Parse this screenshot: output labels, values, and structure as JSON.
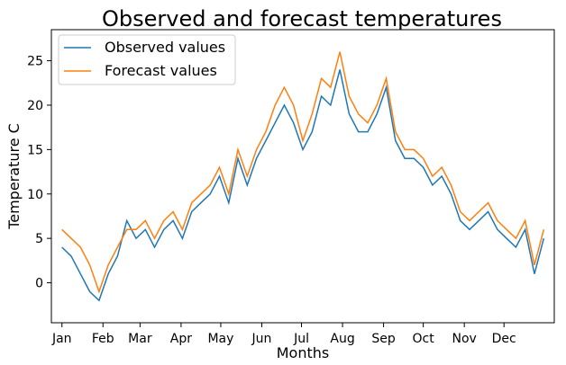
{
  "chart_data": {
    "type": "line",
    "title": "Observed and forecast temperatures",
    "xlabel": "Months",
    "ylabel": "Temperature C",
    "x_unit": "day_of_year",
    "xlim": [
      -8,
      372
    ],
    "ylim": [
      -4.5,
      28.5
    ],
    "x_ticks": [
      {
        "label": "Jan",
        "day": 0
      },
      {
        "label": "Feb",
        "day": 31
      },
      {
        "label": "Mar",
        "day": 59
      },
      {
        "label": "Apr",
        "day": 90
      },
      {
        "label": "May",
        "day": 120
      },
      {
        "label": "Jun",
        "day": 151
      },
      {
        "label": "Jul",
        "day": 181
      },
      {
        "label": "Aug",
        "day": 212
      },
      {
        "label": "Sep",
        "day": 243
      },
      {
        "label": "Oct",
        "day": 273
      },
      {
        "label": "Nov",
        "day": 304
      },
      {
        "label": "Dec",
        "day": 334
      }
    ],
    "y_ticks": [
      0,
      5,
      10,
      15,
      20,
      25
    ],
    "grid": false,
    "legend_position": "top-left",
    "colors": {
      "observed": "#1f77b4",
      "forecast": "#ff7f0e"
    },
    "series": [
      {
        "name": "Observed values",
        "x": [
          0,
          7,
          14,
          21,
          28,
          35,
          42,
          49,
          56,
          63,
          70,
          77,
          84,
          91,
          98,
          105,
          112,
          119,
          126,
          133,
          140,
          147,
          154,
          161,
          168,
          175,
          182,
          189,
          196,
          203,
          210,
          217,
          224,
          231,
          238,
          245,
          252,
          259,
          266,
          273,
          280,
          287,
          294,
          301,
          308,
          315,
          322,
          329,
          336,
          343,
          350,
          357,
          364
        ],
        "y": [
          4,
          3,
          1,
          -1,
          -2,
          1,
          3,
          7,
          5,
          6,
          4,
          6,
          7,
          5,
          8,
          9,
          10,
          12,
          9,
          14,
          11,
          14,
          16,
          18,
          20,
          18,
          15,
          17,
          21,
          20,
          24,
          19,
          17,
          17,
          19,
          22,
          16,
          14,
          14,
          13,
          11,
          12,
          10,
          7,
          6,
          7,
          8,
          6,
          5,
          4,
          6,
          1,
          5
        ]
      },
      {
        "name": "Forecast values",
        "x": [
          0,
          7,
          14,
          21,
          28,
          35,
          42,
          49,
          56,
          63,
          70,
          77,
          84,
          91,
          98,
          105,
          112,
          119,
          126,
          133,
          140,
          147,
          154,
          161,
          168,
          175,
          182,
          189,
          196,
          203,
          210,
          217,
          224,
          231,
          238,
          245,
          252,
          259,
          266,
          273,
          280,
          287,
          294,
          301,
          308,
          315,
          322,
          329,
          336,
          343,
          350,
          357,
          364
        ],
        "y": [
          6,
          5,
          4,
          2,
          -1,
          2,
          4,
          6,
          6,
          7,
          5,
          7,
          8,
          6,
          9,
          10,
          11,
          13,
          10,
          15,
          12,
          15,
          17,
          20,
          22,
          20,
          16,
          19,
          23,
          22,
          26,
          21,
          19,
          18,
          20,
          23,
          17,
          15,
          15,
          14,
          12,
          13,
          11,
          8,
          7,
          8,
          9,
          7,
          6,
          5,
          7,
          2,
          6
        ]
      }
    ]
  }
}
